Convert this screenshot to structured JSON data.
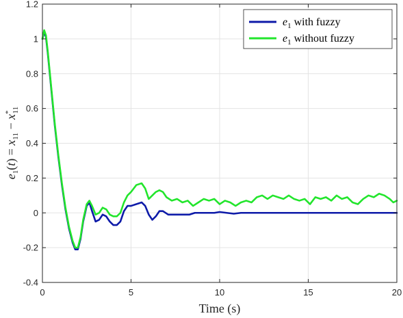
{
  "chart_data": {
    "type": "line",
    "xlabel": "Time (s)",
    "ylabel": "e_1(t) = x_11 − x*_11",
    "xlim": [
      0,
      20
    ],
    "ylim": [
      -0.4,
      1.2
    ],
    "x_ticks": [
      "0",
      "5",
      "10",
      "15",
      "20"
    ],
    "y_ticks": [
      "-0.4",
      "-0.2",
      "0",
      "0.2",
      "0.4",
      "0.6",
      "0.8",
      "1",
      "1.2"
    ],
    "grid": true,
    "legend_position": "top-right",
    "series": [
      {
        "name": "e1 with fuzzy",
        "color": "#0d1aa8",
        "x": [
          0,
          0.1,
          0.2,
          0.3,
          0.5,
          0.7,
          0.9,
          1.1,
          1.3,
          1.5,
          1.7,
          1.85,
          2.0,
          2.15,
          2.3,
          2.5,
          2.65,
          2.8,
          3.0,
          3.2,
          3.4,
          3.6,
          3.8,
          4.0,
          4.2,
          4.4,
          4.6,
          4.8,
          5.0,
          5.3,
          5.6,
          5.8,
          6.0,
          6.2,
          6.4,
          6.6,
          6.8,
          7.1,
          7.4,
          7.7,
          8.0,
          8.3,
          8.6,
          9.0,
          9.4,
          9.7,
          10.0,
          10.4,
          10.8,
          11.2,
          11.6,
          12.0,
          13.0,
          14.0,
          15.0,
          16.0,
          17.0,
          18.0,
          19.0,
          20.0
        ],
        "values": [
          1.0,
          1.04,
          1.01,
          0.92,
          0.71,
          0.5,
          0.32,
          0.16,
          0.02,
          -0.09,
          -0.17,
          -0.21,
          -0.21,
          -0.15,
          -0.05,
          0.04,
          0.06,
          0.01,
          -0.05,
          -0.04,
          -0.01,
          -0.02,
          -0.05,
          -0.07,
          -0.07,
          -0.05,
          0.01,
          0.04,
          0.04,
          0.05,
          0.06,
          0.04,
          -0.01,
          -0.04,
          -0.02,
          0.01,
          0.01,
          -0.01,
          -0.01,
          -0.01,
          -0.01,
          -0.01,
          0.0,
          0.0,
          0.0,
          0.0,
          0.005,
          0.0,
          -0.005,
          0.0,
          0.0,
          0.0,
          0.0,
          0.0,
          0.0,
          0.0,
          0.0,
          0.0,
          0.0,
          0.0
        ]
      },
      {
        "name": "e1 without fuzzy",
        "color": "#22e52c",
        "x": [
          0,
          0.1,
          0.2,
          0.3,
          0.5,
          0.7,
          0.9,
          1.1,
          1.3,
          1.5,
          1.7,
          1.85,
          2.0,
          2.15,
          2.3,
          2.5,
          2.65,
          2.8,
          3.0,
          3.2,
          3.4,
          3.6,
          3.8,
          4.0,
          4.2,
          4.4,
          4.6,
          4.8,
          5.0,
          5.3,
          5.6,
          5.8,
          6.0,
          6.2,
          6.4,
          6.6,
          6.8,
          7.0,
          7.3,
          7.6,
          7.9,
          8.2,
          8.5,
          8.8,
          9.1,
          9.4,
          9.7,
          10.0,
          10.3,
          10.6,
          10.9,
          11.2,
          11.5,
          11.8,
          12.1,
          12.4,
          12.7,
          13.0,
          13.3,
          13.6,
          13.9,
          14.2,
          14.5,
          14.8,
          15.1,
          15.4,
          15.7,
          16.0,
          16.3,
          16.6,
          16.9,
          17.2,
          17.5,
          17.8,
          18.1,
          18.4,
          18.7,
          19.0,
          19.3,
          19.6,
          19.8,
          20.0
        ],
        "values": [
          1.0,
          1.05,
          1.02,
          0.93,
          0.72,
          0.51,
          0.33,
          0.17,
          0.03,
          -0.08,
          -0.16,
          -0.2,
          -0.2,
          -0.14,
          -0.04,
          0.05,
          0.07,
          0.04,
          -0.01,
          0.0,
          0.03,
          0.02,
          -0.01,
          -0.02,
          -0.02,
          0.0,
          0.06,
          0.1,
          0.12,
          0.16,
          0.17,
          0.14,
          0.08,
          0.1,
          0.12,
          0.13,
          0.12,
          0.09,
          0.07,
          0.08,
          0.06,
          0.07,
          0.04,
          0.06,
          0.08,
          0.07,
          0.08,
          0.05,
          0.07,
          0.06,
          0.04,
          0.06,
          0.07,
          0.06,
          0.09,
          0.1,
          0.08,
          0.1,
          0.09,
          0.08,
          0.1,
          0.08,
          0.07,
          0.08,
          0.05,
          0.09,
          0.08,
          0.09,
          0.07,
          0.1,
          0.08,
          0.09,
          0.06,
          0.05,
          0.08,
          0.1,
          0.09,
          0.11,
          0.1,
          0.08,
          0.06,
          0.07
        ]
      }
    ]
  }
}
